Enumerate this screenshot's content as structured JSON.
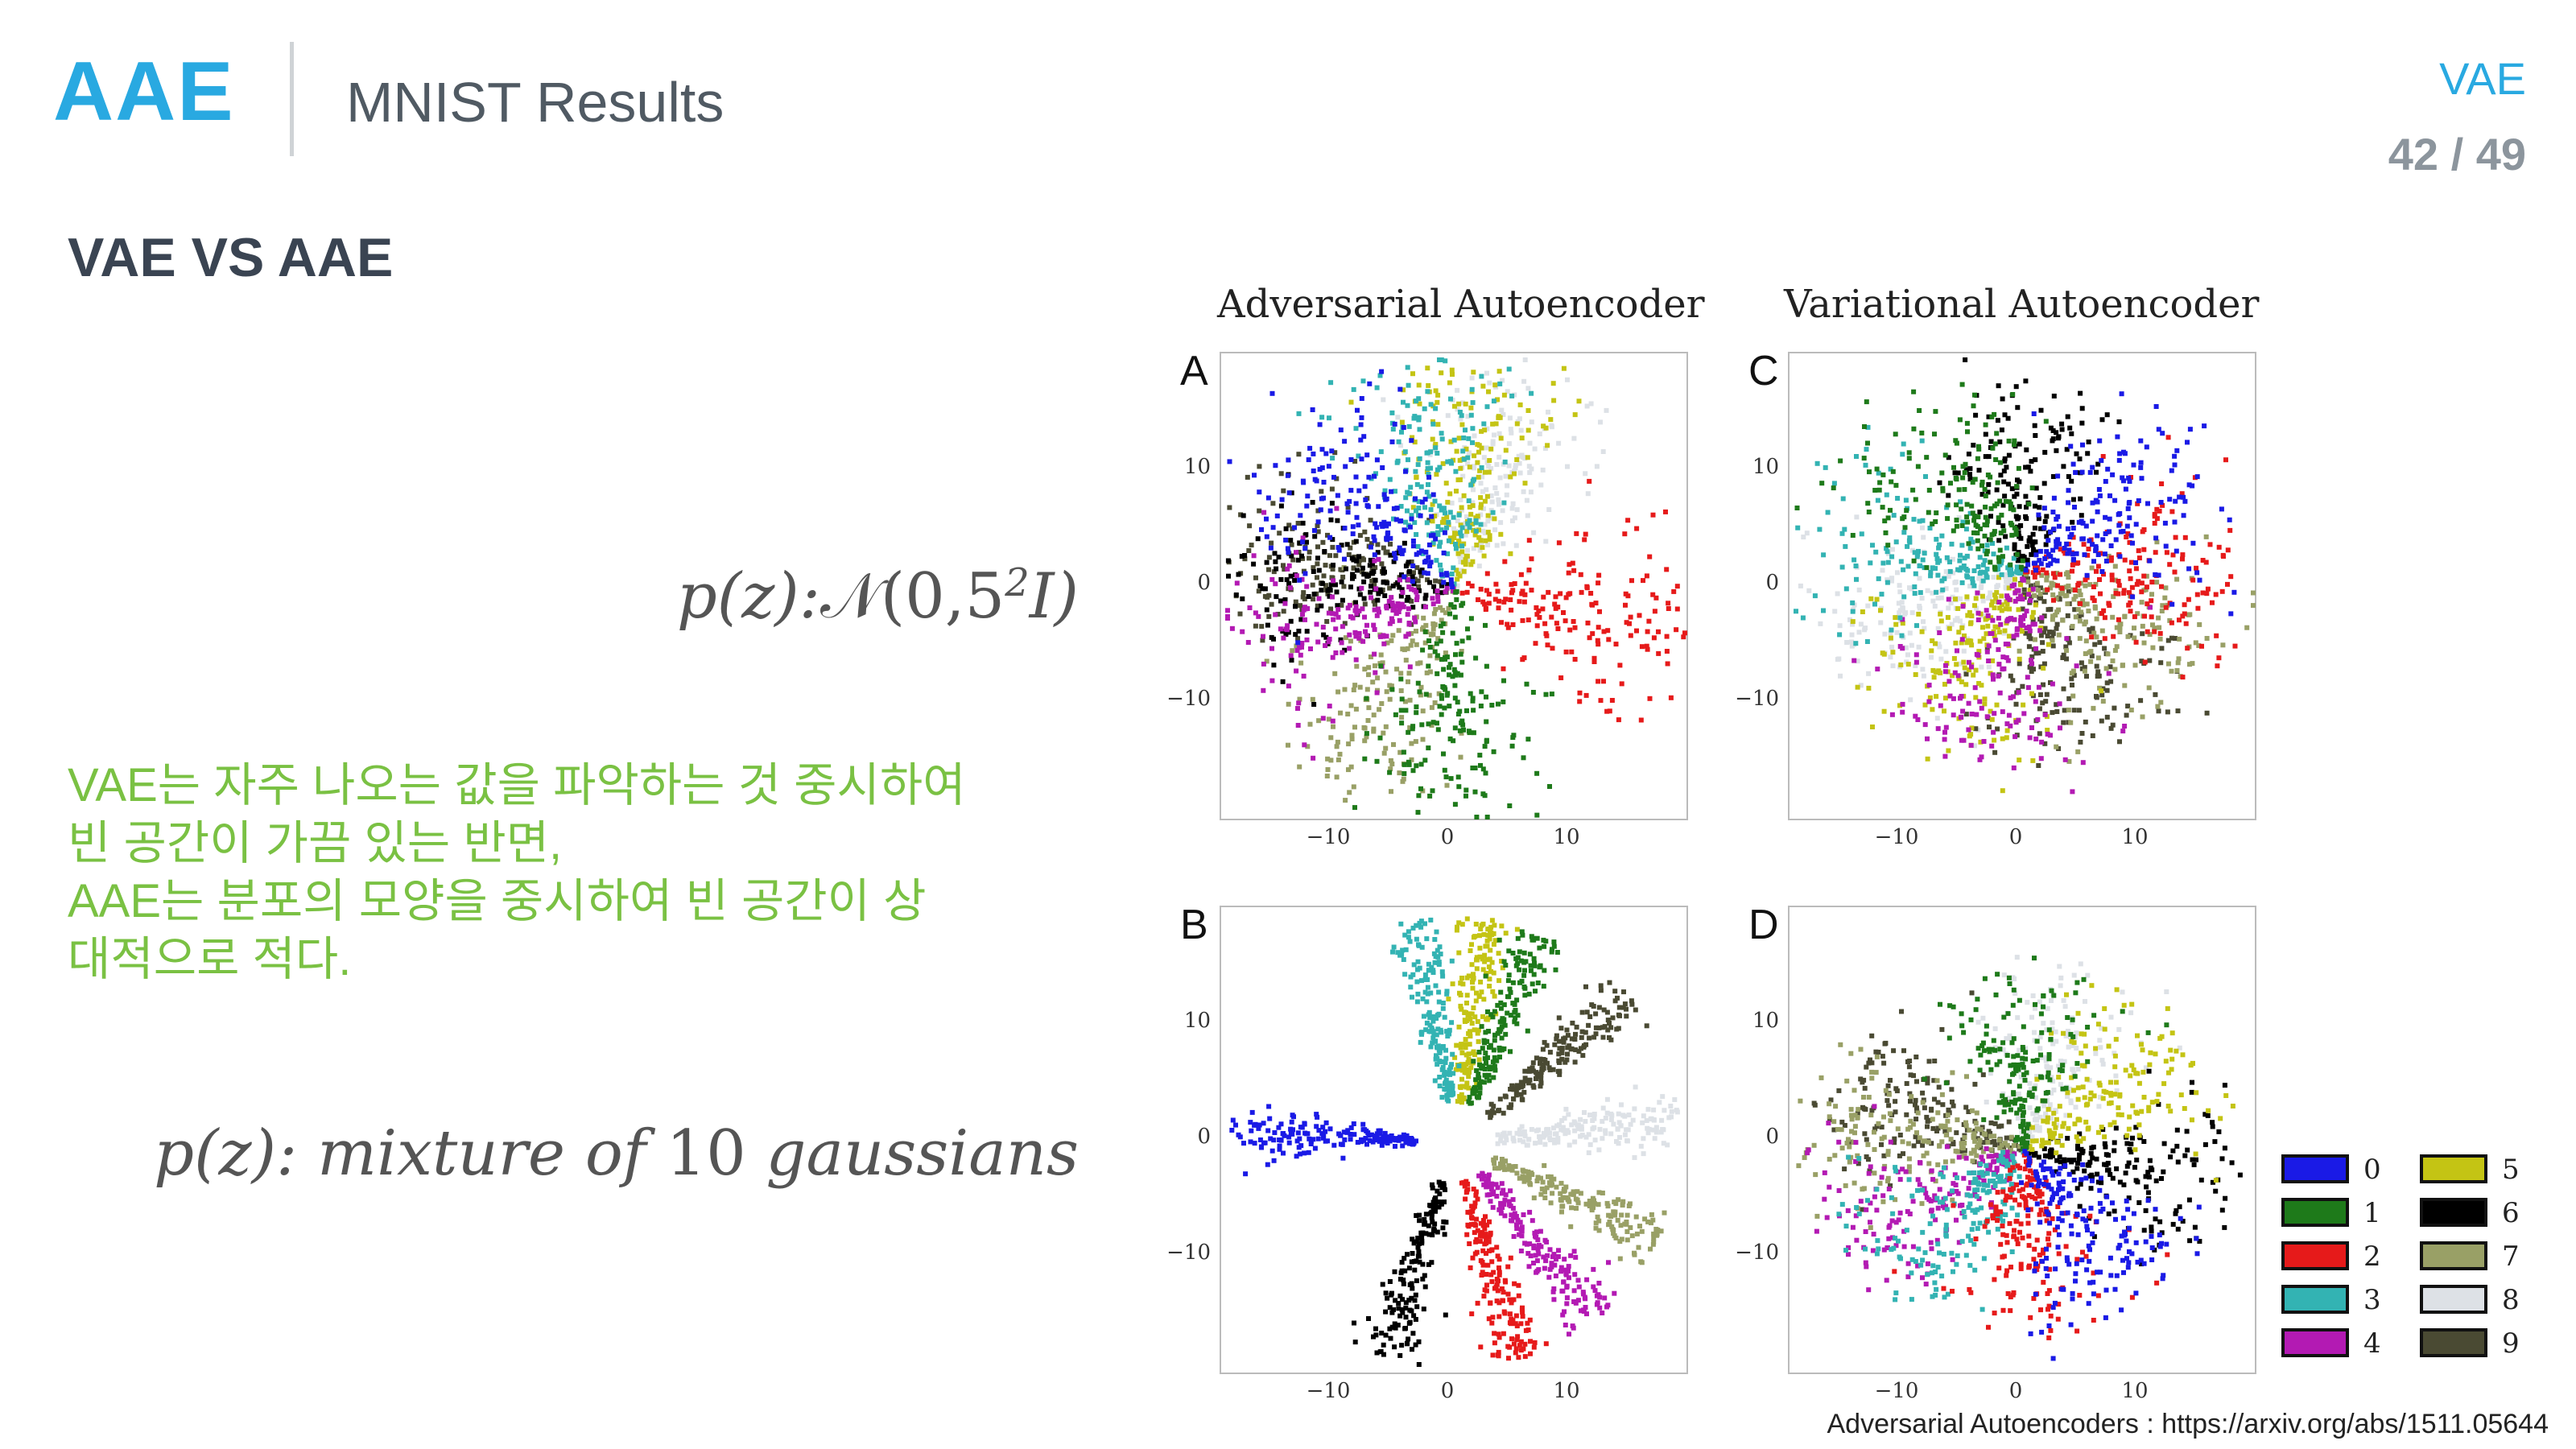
{
  "header": {
    "logo": "AAE",
    "title": "MNIST Results",
    "tag": "VAE",
    "pager": "42 / 49"
  },
  "subheading": "VAE VS AAE",
  "formula_top": {
    "prefix": "p(z):",
    "dist": "𝒩(0,5",
    "sup": "2",
    "suffix": "I)"
  },
  "formula_bottom": {
    "prefix": "p(z):",
    "mid": "mixture of",
    "num": "10",
    "suffix": "gaussians"
  },
  "note_lines": [
    "VAE는 자주 나오는 값을 파악하는 것 중시하여",
    "빈 공간이 가끔 있는 반면,",
    "AAE는 분포의 모양을 중시하여 빈 공간이 상",
    "대적으로 적다."
  ],
  "figure": {
    "left_column_title": "Adversarial Autoencoder",
    "right_column_title": "Variational Autoencoder",
    "panels": [
      "A",
      "C",
      "B",
      "D"
    ],
    "x_ticks": [
      "−10",
      "0",
      "10"
    ],
    "y_ticks": [
      "10",
      "0",
      "−10"
    ]
  },
  "colors": {
    "accent": "#29a9e1",
    "note": "#7ac143",
    "digits": [
      "#1a1ae6",
      "#1e7a1a",
      "#e61a1a",
      "#33b3b3",
      "#b31ab3",
      "#c4c414",
      "#000000",
      "#99a066",
      "#dde1e6",
      "#4a4a33"
    ]
  },
  "legend": [
    "0",
    "1",
    "2",
    "3",
    "4",
    "5",
    "6",
    "7",
    "8",
    "9"
  ],
  "citation": "Adversarial Autoencoders : https://arxiv.org/abs/1511.05644"
}
